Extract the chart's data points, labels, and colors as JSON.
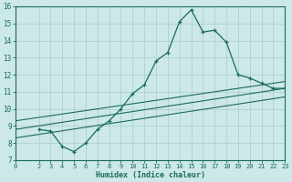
{
  "xlabel": "Humidex (Indice chaleur)",
  "bg_color": "#cce8e8",
  "grid_color": "#aacccc",
  "line_color": "#1a6b5a",
  "xlim": [
    0,
    23
  ],
  "ylim": [
    7,
    16
  ],
  "xticks": [
    0,
    2,
    3,
    4,
    5,
    6,
    7,
    8,
    9,
    10,
    11,
    12,
    13,
    14,
    15,
    16,
    17,
    18,
    19,
    20,
    21,
    22,
    23
  ],
  "yticks": [
    7,
    8,
    9,
    10,
    11,
    12,
    13,
    14,
    15,
    16
  ],
  "main_x": [
    2,
    3,
    4,
    5,
    6,
    7,
    8,
    9,
    10,
    11,
    12,
    13,
    14,
    15,
    16,
    17,
    18,
    19,
    20,
    21,
    22,
    23
  ],
  "main_y": [
    8.8,
    8.7,
    7.8,
    7.5,
    8.0,
    8.8,
    9.3,
    10.0,
    10.9,
    11.4,
    12.8,
    13.3,
    15.1,
    15.8,
    14.5,
    14.6,
    13.9,
    12.0,
    11.8,
    11.5,
    11.2,
    11.2
  ],
  "reg_line1": [
    [
      0,
      23
    ],
    [
      8.8,
      11.2
    ]
  ],
  "reg_line2": [
    [
      0,
      23
    ],
    [
      9.3,
      11.6
    ]
  ],
  "reg_line3": [
    [
      0,
      23
    ],
    [
      8.3,
      10.7
    ]
  ]
}
